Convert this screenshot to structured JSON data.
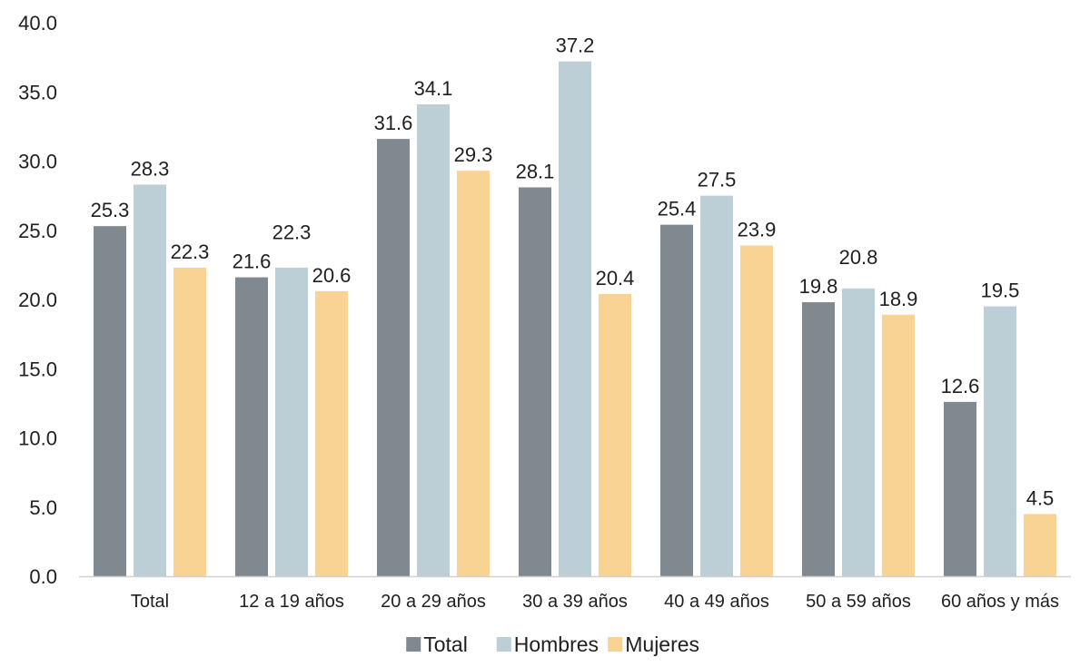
{
  "chart_data": {
    "type": "bar",
    "title": "",
    "xlabel": "",
    "ylabel": "",
    "ylim": [
      0,
      40
    ],
    "yticks": [
      "0.0",
      "5.0",
      "10.0",
      "15.0",
      "20.0",
      "25.0",
      "30.0",
      "35.0",
      "40.0"
    ],
    "grid": false,
    "legend_position": "bottom",
    "categories": [
      "Total",
      "12 a 19 años",
      "20 a 29 años",
      "30 a 39 años",
      "40 a 49 años",
      "50 a 59 años",
      "60 años y más"
    ],
    "series": [
      {
        "name": "Total",
        "color": "#7f898f",
        "values": [
          25.3,
          21.6,
          31.6,
          28.1,
          25.4,
          19.8,
          12.6
        ]
      },
      {
        "name": "Hombres",
        "color": "#bccfd6",
        "values": [
          28.3,
          22.3,
          34.1,
          37.2,
          27.5,
          20.8,
          19.5
        ]
      },
      {
        "name": "Mujeres",
        "color": "#f9d393",
        "values": [
          22.3,
          20.6,
          29.3,
          20.4,
          23.9,
          18.9,
          4.5
        ]
      }
    ],
    "data_labels": [
      [
        "25.3",
        "21.6",
        "31.6",
        "28.1",
        "25.4",
        "19.8",
        "12.6"
      ],
      [
        "28.3",
        "22.3",
        "34.1",
        "37.2",
        "27.5",
        "20.8",
        "19.5"
      ],
      [
        "22.3",
        "20.6",
        "29.3",
        "20.4",
        "23.9",
        "18.9",
        "4.5"
      ]
    ]
  }
}
